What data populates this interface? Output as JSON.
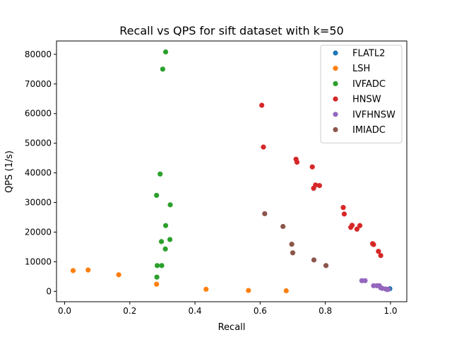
{
  "chart_data": {
    "type": "scatter",
    "title": "Recall vs QPS for sift dataset with k=50",
    "xlabel": "Recall",
    "ylabel": "QPS (1/s)",
    "xlim": [
      -0.025,
      1.05
    ],
    "ylim": [
      -3500,
      84500
    ],
    "xticks": [
      0.0,
      0.2,
      0.4,
      0.6,
      0.8,
      1.0
    ],
    "xtick_labels": [
      "0.0",
      "0.2",
      "0.4",
      "0.6",
      "0.8",
      "1.0"
    ],
    "yticks": [
      0,
      10000,
      20000,
      30000,
      40000,
      50000,
      60000,
      70000,
      80000
    ],
    "ytick_labels": [
      "0",
      "10000",
      "20000",
      "30000",
      "40000",
      "50000",
      "60000",
      "70000",
      "80000"
    ],
    "grid": false,
    "legend_position": "top-right",
    "series": [
      {
        "name": "FLATL2",
        "color": "#1f77b4",
        "points": [
          [
            0.998,
            900
          ]
        ]
      },
      {
        "name": "LSH",
        "color": "#ff7f0e",
        "points": [
          [
            0.026,
            7000
          ],
          [
            0.072,
            7200
          ],
          [
            0.166,
            5600
          ],
          [
            0.282,
            2400
          ],
          [
            0.434,
            700
          ],
          [
            0.564,
            300
          ],
          [
            0.68,
            200
          ]
        ]
      },
      {
        "name": "IVFADC",
        "color": "#2ca02c",
        "points": [
          [
            0.31,
            80800
          ],
          [
            0.301,
            75000
          ],
          [
            0.293,
            39600
          ],
          [
            0.282,
            32400
          ],
          [
            0.324,
            29200
          ],
          [
            0.31,
            22200
          ],
          [
            0.323,
            17500
          ],
          [
            0.297,
            16800
          ],
          [
            0.309,
            14300
          ],
          [
            0.284,
            8700
          ],
          [
            0.298,
            8700
          ],
          [
            0.283,
            4800
          ]
        ]
      },
      {
        "name": "HNSW",
        "color": "#d62728",
        "points": [
          [
            0.605,
            62800
          ],
          [
            0.61,
            48700
          ],
          [
            0.71,
            44600
          ],
          [
            0.713,
            43600
          ],
          [
            0.76,
            42000
          ],
          [
            0.77,
            35900
          ],
          [
            0.782,
            35700
          ],
          [
            0.764,
            34800
          ],
          [
            0.855,
            28300
          ],
          [
            0.858,
            26100
          ],
          [
            0.882,
            22300
          ],
          [
            0.906,
            22200
          ],
          [
            0.878,
            21600
          ],
          [
            0.897,
            21000
          ],
          [
            0.945,
            16100
          ],
          [
            0.948,
            15800
          ],
          [
            0.963,
            13500
          ],
          [
            0.97,
            12100
          ]
        ]
      },
      {
        "name": "IVFHNSW",
        "color": "#9467bd",
        "points": [
          [
            0.912,
            3600
          ],
          [
            0.922,
            3600
          ],
          [
            0.948,
            1900
          ],
          [
            0.958,
            1900
          ],
          [
            0.966,
            1900
          ],
          [
            0.97,
            1200
          ],
          [
            0.975,
            1000
          ],
          [
            0.985,
            800
          ],
          [
            0.99,
            600
          ],
          [
            0.993,
            700
          ]
        ]
      },
      {
        "name": "IMIADC",
        "color": "#8c564b",
        "points": [
          [
            0.614,
            26200
          ],
          [
            0.67,
            21900
          ],
          [
            0.697,
            15900
          ],
          [
            0.7,
            13000
          ],
          [
            0.765,
            10600
          ],
          [
            0.802,
            8700
          ]
        ]
      }
    ]
  }
}
